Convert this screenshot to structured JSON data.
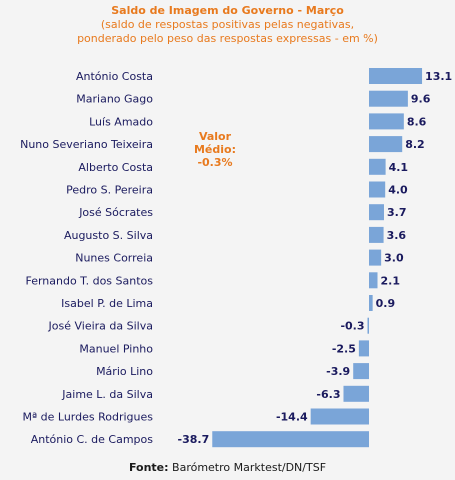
{
  "chart_data": {
    "type": "bar",
    "orientation": "horizontal",
    "title": "Saldo de Imagem do Governo - Março",
    "subtitle_lines": [
      "(saldo de respostas positivas pelas negativas,",
      "ponderado pelo peso das respostas expressas - em %)"
    ],
    "categories": [
      "António Costa",
      "Mariano Gago",
      "Luís Amado",
      "Nuno Severiano Teixeira",
      "Alberto Costa",
      "Pedro S. Pereira",
      "José Sócrates",
      "Augusto S. Silva",
      "Nunes Correia",
      "Fernando T. dos Santos",
      "Isabel P. de Lima",
      "José Vieira da Silva",
      "Manuel Pinho",
      "Mário Lino",
      "Jaime L. da Silva",
      "Mª de Lurdes Rodrigues",
      "António C. de Campos"
    ],
    "values": [
      13.1,
      9.6,
      8.6,
      8.2,
      4.1,
      4.0,
      3.7,
      3.6,
      3.0,
      2.1,
      0.9,
      -0.3,
      -2.5,
      -3.9,
      -6.3,
      -14.4,
      -38.7
    ],
    "value_labels": [
      "13.1",
      "9.6",
      "8.6",
      "8.2",
      "4.1",
      "4.0",
      "3.7",
      "3.6",
      "3.0",
      "2.1",
      "0.9",
      "-0.3",
      "-2.5",
      "-3.9",
      "-6.3",
      "-14.4",
      "-38.7"
    ],
    "average_label_lines": [
      "Valor",
      "Médio:",
      "-0.3%"
    ],
    "bar_color": "#7aa5d8",
    "title_color": "#e87a1e",
    "label_color": "#1a1a5e",
    "grid": false,
    "legend": "none"
  },
  "source": {
    "label": "Fonte:",
    "text": "Barómetro Marktest/DN/TSF"
  }
}
